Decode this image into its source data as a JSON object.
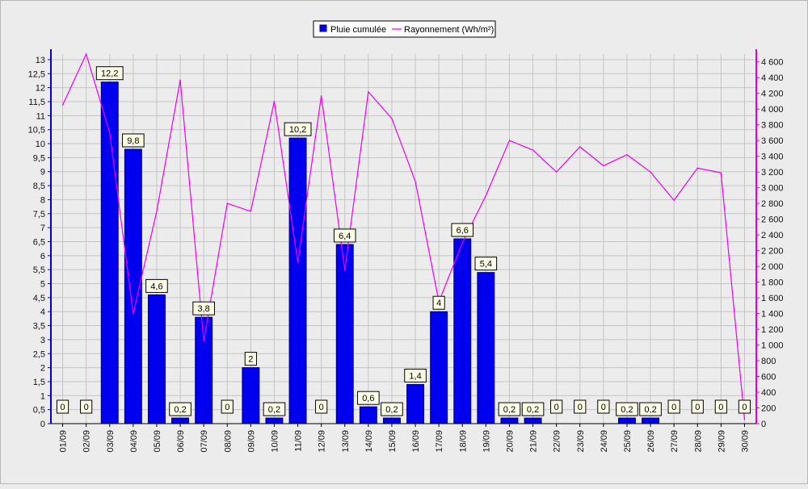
{
  "colors": {
    "background": "#ececec",
    "bar_fill": "#0000ee",
    "bar_stroke": "#00007a",
    "line": "#ee00ee",
    "grid": "#c4c4c4",
    "left_axis": "#0000cc",
    "right_axis": "#dd00dd",
    "label_bg": "#ffffe8"
  },
  "chart_data": {
    "type": "bar",
    "categories": [
      "01/09",
      "02/09",
      "03/09",
      "04/09",
      "05/09",
      "06/09",
      "07/09",
      "08/09",
      "09/09",
      "10/09",
      "11/09",
      "12/09",
      "13/09",
      "14/09",
      "15/09",
      "16/09",
      "17/09",
      "18/09",
      "19/09",
      "20/09",
      "21/09",
      "22/09",
      "23/09",
      "24/09",
      "25/09",
      "26/09",
      "27/09",
      "28/09",
      "29/09",
      "30/09"
    ],
    "series": [
      {
        "name": "Pluie cumulée",
        "type": "bar",
        "axis": "left",
        "values": [
          0,
          0,
          12.2,
          9.8,
          4.6,
          0.2,
          3.8,
          0,
          2,
          0.2,
          10.2,
          0,
          6.4,
          0.6,
          0.2,
          1.4,
          4,
          6.6,
          5.4,
          0.2,
          0.2,
          0,
          0,
          0,
          0.2,
          0.2,
          0,
          0,
          0,
          0
        ],
        "labels": [
          "0",
          "0",
          "12,2",
          "9,8",
          "4,6",
          "0,2",
          "3,8",
          "0",
          "2",
          "0,2",
          "10,2",
          "0",
          "6,4",
          "0,6",
          "0,2",
          "1,4",
          "4",
          "6,6",
          "5,4",
          "0,2",
          "0,2",
          "0",
          "0",
          "0",
          "0,2",
          "0,2",
          "0",
          "0",
          "0",
          "0"
        ]
      },
      {
        "name": "Rayonnement (Wh/m²)",
        "type": "line",
        "axis": "right",
        "values": [
          4050,
          4700,
          3700,
          1400,
          2700,
          4370,
          1050,
          2800,
          2700,
          4100,
          2050,
          4170,
          1950,
          4220,
          3880,
          3080,
          1550,
          2300,
          2900,
          3600,
          3480,
          3200,
          3520,
          3280,
          3420,
          3200,
          2840,
          3250,
          3190,
          50
        ]
      }
    ],
    "ylim_left": [
      0,
      13.2
    ],
    "yticks_left": [
      {
        "v": 0,
        "t": "0"
      },
      {
        "v": 0.5,
        "t": "0,5"
      },
      {
        "v": 1,
        "t": "1"
      },
      {
        "v": 1.5,
        "t": "1,5"
      },
      {
        "v": 2,
        "t": "2"
      },
      {
        "v": 2.5,
        "t": "2,5"
      },
      {
        "v": 3,
        "t": "3"
      },
      {
        "v": 3.5,
        "t": "3,5"
      },
      {
        "v": 4,
        "t": "4"
      },
      {
        "v": 4.5,
        "t": "4,5"
      },
      {
        "v": 5,
        "t": "5"
      },
      {
        "v": 5.5,
        "t": "5,5"
      },
      {
        "v": 6,
        "t": "6"
      },
      {
        "v": 6.5,
        "t": "6,5"
      },
      {
        "v": 7,
        "t": "7"
      },
      {
        "v": 7.5,
        "t": "7,5"
      },
      {
        "v": 8,
        "t": "8"
      },
      {
        "v": 8.5,
        "t": "8,5"
      },
      {
        "v": 9,
        "t": "9"
      },
      {
        "v": 9.5,
        "t": "9,5"
      },
      {
        "v": 10,
        "t": "10"
      },
      {
        "v": 10.5,
        "t": "10,5"
      },
      {
        "v": 11,
        "t": "11"
      },
      {
        "v": 11.5,
        "t": "11,5"
      },
      {
        "v": 12,
        "t": "12"
      },
      {
        "v": 12.5,
        "t": "12,5"
      },
      {
        "v": 13,
        "t": "13"
      }
    ],
    "ylim_right": [
      0,
      4700
    ],
    "yticks_right": [
      {
        "v": 0,
        "t": "0"
      },
      {
        "v": 200,
        "t": "200"
      },
      {
        "v": 400,
        "t": "400"
      },
      {
        "v": 600,
        "t": "600"
      },
      {
        "v": 800,
        "t": "800"
      },
      {
        "v": 1000,
        "t": "1 000"
      },
      {
        "v": 1200,
        "t": "1 200"
      },
      {
        "v": 1400,
        "t": "1 400"
      },
      {
        "v": 1600,
        "t": "1 600"
      },
      {
        "v": 1800,
        "t": "1 800"
      },
      {
        "v": 2000,
        "t": "2 000"
      },
      {
        "v": 2200,
        "t": "2 200"
      },
      {
        "v": 2400,
        "t": "2 400"
      },
      {
        "v": 2600,
        "t": "2 600"
      },
      {
        "v": 2800,
        "t": "2 800"
      },
      {
        "v": 3000,
        "t": "3 000"
      },
      {
        "v": 3200,
        "t": "3 200"
      },
      {
        "v": 3400,
        "t": "3 400"
      },
      {
        "v": 3600,
        "t": "3 600"
      },
      {
        "v": 3800,
        "t": "3 800"
      },
      {
        "v": 4000,
        "t": "4 000"
      },
      {
        "v": 4200,
        "t": "4 200"
      },
      {
        "v": 4400,
        "t": "4 400"
      },
      {
        "v": 4600,
        "t": "4 600"
      }
    ],
    "grid": true,
    "legend_position": "top-center"
  }
}
